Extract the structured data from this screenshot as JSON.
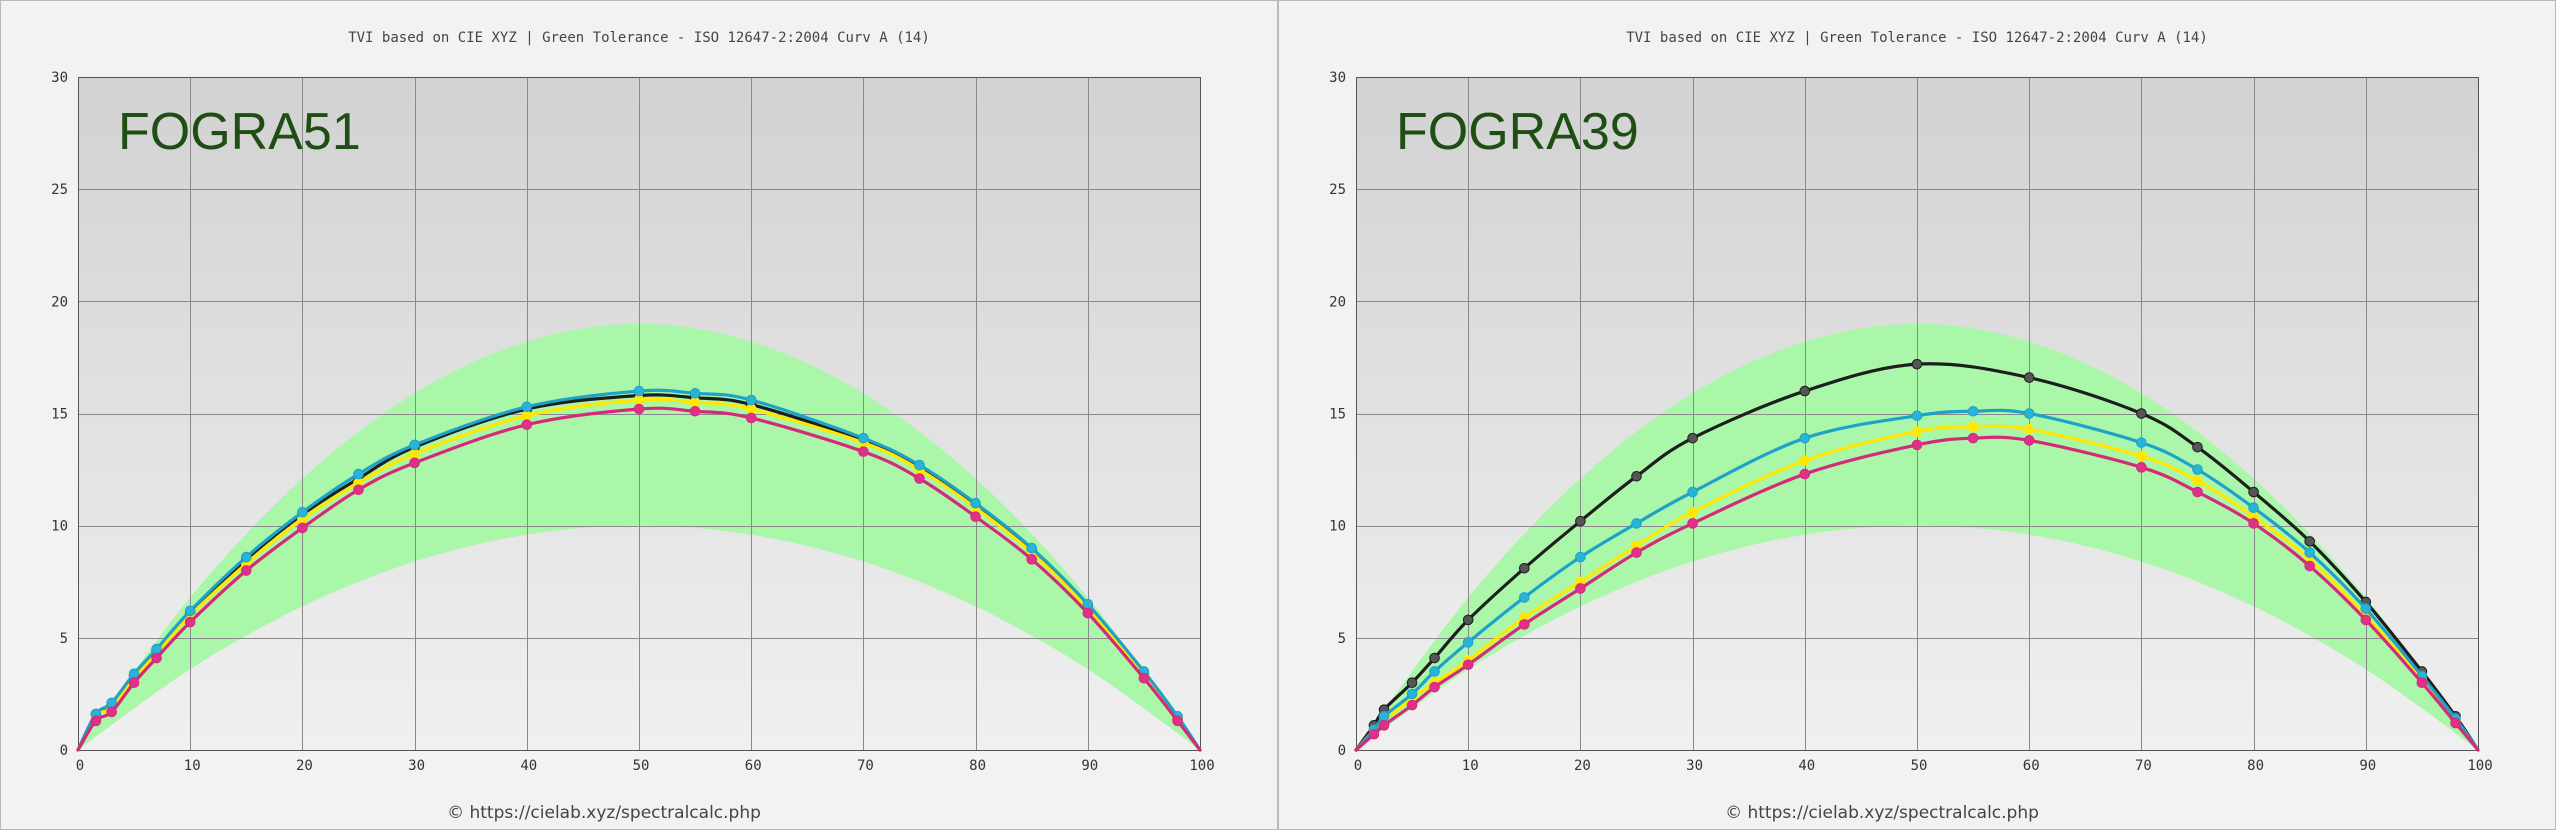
{
  "chart_data": [
    {
      "type": "line",
      "title": "TVI based on CIE XYZ  |  Green Tolerance - ISO 12647-2:2004 Curv A (14)",
      "label": "FOGRA51",
      "footer": "© https://cielab.xyz/spectralcalc.php",
      "xlim": [
        0,
        100
      ],
      "ylim": [
        0,
        30
      ],
      "x_ticks": [
        "0",
        "10",
        "20",
        "30",
        "40",
        "50",
        "60",
        "70",
        "80",
        "90",
        "100"
      ],
      "y_ticks": [
        "0",
        "5",
        "10",
        "15",
        "20",
        "25",
        "30"
      ],
      "grid": true,
      "tolerance_band": {
        "color": "#aaf7aa",
        "x": [
          0,
          10,
          20,
          30,
          40,
          50,
          60,
          70,
          80,
          90,
          100
        ],
        "lower": [
          0,
          3.6,
          6.4,
          8.4,
          9.6,
          10.0,
          9.6,
          8.4,
          6.4,
          3.6,
          0
        ],
        "upper": [
          0,
          6.8,
          12.1,
          15.9,
          18.2,
          19.0,
          18.2,
          15.9,
          12.1,
          6.8,
          0
        ]
      },
      "series": [
        {
          "color": "#1e1e1e",
          "marker": "#555555",
          "x": [
            0,
            1.6,
            3,
            5,
            7,
            10,
            15,
            20,
            25,
            30,
            40,
            50,
            55,
            60,
            70,
            75,
            80,
            85,
            90,
            95,
            98,
            100
          ],
          "y": [
            0,
            1.6,
            2.0,
            3.3,
            4.4,
            6.1,
            8.5,
            10.5,
            12.1,
            13.5,
            15.2,
            15.8,
            15.7,
            15.4,
            13.8,
            12.6,
            10.9,
            8.9,
            6.4,
            3.4,
            1.4,
            0
          ]
        },
        {
          "color": "#ffe800",
          "marker": "#ffe800",
          "x": [
            0,
            1.6,
            3,
            5,
            7,
            10,
            15,
            20,
            25,
            30,
            40,
            50,
            55,
            60,
            70,
            75,
            80,
            85,
            90,
            95,
            98,
            100
          ],
          "y": [
            0,
            1.5,
            1.9,
            3.2,
            4.3,
            6.0,
            8.3,
            10.3,
            11.9,
            13.2,
            14.9,
            15.6,
            15.5,
            15.2,
            13.7,
            12.5,
            10.8,
            8.8,
            6.3,
            3.3,
            1.4,
            0
          ]
        },
        {
          "color": "#1fa2c8",
          "marker": "#27b4d8",
          "x": [
            0,
            1.6,
            3,
            5,
            7,
            10,
            15,
            20,
            25,
            30,
            40,
            50,
            55,
            60,
            70,
            75,
            80,
            85,
            90,
            95,
            98,
            100
          ],
          "y": [
            0,
            1.6,
            2.1,
            3.4,
            4.5,
            6.2,
            8.6,
            10.6,
            12.3,
            13.6,
            15.3,
            16.0,
            15.9,
            15.6,
            13.9,
            12.7,
            11.0,
            9.0,
            6.5,
            3.5,
            1.5,
            0
          ]
        },
        {
          "color": "#d42a7a",
          "marker": "#e0308a",
          "x": [
            0,
            1.6,
            3,
            5,
            7,
            10,
            15,
            20,
            25,
            30,
            40,
            50,
            55,
            60,
            70,
            75,
            80,
            85,
            90,
            95,
            98,
            100
          ],
          "y": [
            0,
            1.3,
            1.7,
            3.0,
            4.1,
            5.7,
            8.0,
            9.9,
            11.6,
            12.8,
            14.5,
            15.2,
            15.1,
            14.8,
            13.3,
            12.1,
            10.4,
            8.5,
            6.1,
            3.2,
            1.3,
            0
          ]
        }
      ]
    },
    {
      "type": "line",
      "title": "TVI based on CIE XYZ  |  Green Tolerance - ISO 12647-2:2004 Curv A (14)",
      "label": "FOGRA39",
      "footer": "© https://cielab.xyz/spectralcalc.php",
      "xlim": [
        0,
        100
      ],
      "ylim": [
        0,
        30
      ],
      "x_ticks": [
        "0",
        "10",
        "20",
        "30",
        "40",
        "50",
        "60",
        "70",
        "80",
        "90",
        "100"
      ],
      "y_ticks": [
        "0",
        "5",
        "10",
        "15",
        "20",
        "25",
        "30"
      ],
      "grid": true,
      "tolerance_band": {
        "color": "#aaf7aa",
        "x": [
          0,
          10,
          20,
          30,
          40,
          50,
          60,
          70,
          80,
          90,
          100
        ],
        "lower": [
          0,
          3.6,
          6.4,
          8.4,
          9.6,
          10.0,
          9.6,
          8.4,
          6.4,
          3.6,
          0
        ],
        "upper": [
          0,
          6.8,
          12.1,
          15.9,
          18.2,
          19.0,
          18.2,
          15.9,
          12.1,
          6.8,
          0
        ]
      },
      "series": [
        {
          "color": "#1e1e1e",
          "marker": "#555555",
          "x": [
            0,
            1.6,
            2.5,
            5,
            7,
            10,
            15,
            20,
            25,
            30,
            40,
            50,
            60,
            70,
            75,
            80,
            85,
            90,
            95,
            98,
            100
          ],
          "y": [
            0,
            1.1,
            1.8,
            3.0,
            4.1,
            5.8,
            8.1,
            10.2,
            12.2,
            13.9,
            16.0,
            17.2,
            16.6,
            15.0,
            13.5,
            11.5,
            9.3,
            6.6,
            3.5,
            1.5,
            0
          ]
        },
        {
          "color": "#ffe800",
          "marker": "#ffe800",
          "x": [
            0,
            1.6,
            2.5,
            5,
            7,
            10,
            15,
            20,
            25,
            30,
            40,
            50,
            55,
            60,
            70,
            75,
            80,
            85,
            90,
            95,
            98,
            100
          ],
          "y": [
            0,
            0.9,
            1.3,
            2.3,
            3.0,
            4.0,
            5.9,
            7.5,
            9.1,
            10.6,
            12.9,
            14.2,
            14.4,
            14.3,
            13.1,
            12.0,
            10.4,
            8.5,
            6.0,
            3.1,
            1.3,
            0
          ]
        },
        {
          "color": "#1fa2c8",
          "marker": "#27b4d8",
          "x": [
            0,
            1.6,
            2.5,
            5,
            7,
            10,
            15,
            20,
            25,
            30,
            40,
            50,
            55,
            60,
            70,
            75,
            80,
            85,
            90,
            95,
            98,
            100
          ],
          "y": [
            0,
            0.9,
            1.5,
            2.5,
            3.5,
            4.8,
            6.8,
            8.6,
            10.1,
            11.5,
            13.9,
            14.9,
            15.1,
            15.0,
            13.7,
            12.5,
            10.8,
            8.8,
            6.3,
            3.3,
            1.4,
            0
          ]
        },
        {
          "color": "#d42a7a",
          "marker": "#e0308a",
          "x": [
            0,
            1.6,
            2.5,
            5,
            7,
            10,
            15,
            20,
            25,
            30,
            40,
            50,
            55,
            60,
            70,
            75,
            80,
            85,
            90,
            95,
            98,
            100
          ],
          "y": [
            0,
            0.7,
            1.1,
            2.0,
            2.8,
            3.8,
            5.6,
            7.2,
            8.8,
            10.1,
            12.3,
            13.6,
            13.9,
            13.8,
            12.6,
            11.5,
            10.1,
            8.2,
            5.8,
            3.0,
            1.2,
            0
          ]
        }
      ]
    }
  ]
}
